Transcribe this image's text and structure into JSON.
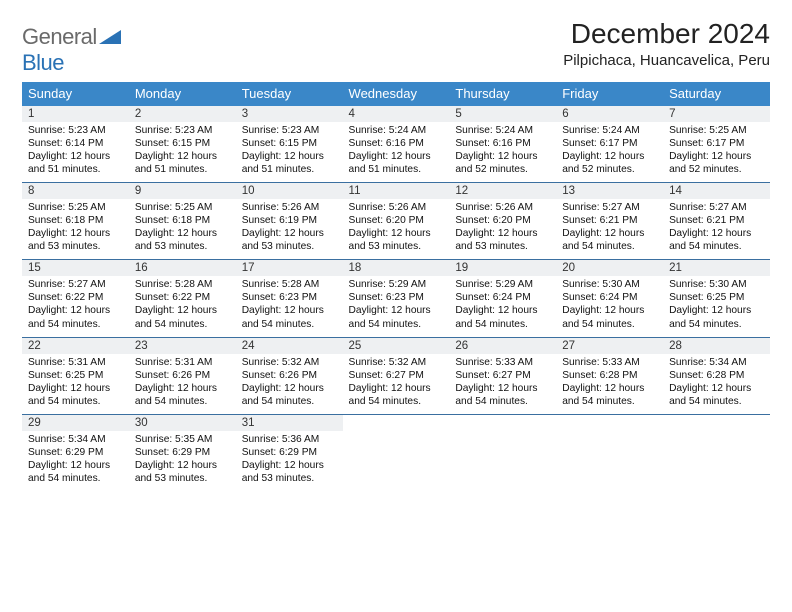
{
  "brand": {
    "part1": "General",
    "part2": "Blue"
  },
  "title": "December 2024",
  "location": "Pilpichaca, Huancavelica, Peru",
  "colors": {
    "header_bg": "#3a87c8",
    "header_text": "#ffffff",
    "daynum_bg": "#eef0f2",
    "row_divider": "#3a6fa0",
    "logo_gray": "#6a6a6a",
    "logo_blue": "#2a72b5",
    "page_bg": "#ffffff"
  },
  "typography": {
    "title_fontsize": 28,
    "location_fontsize": 15,
    "weekday_fontsize": 13,
    "daynum_fontsize": 11.5,
    "body_fontsize": 10.2
  },
  "weekdays": [
    "Sunday",
    "Monday",
    "Tuesday",
    "Wednesday",
    "Thursday",
    "Friday",
    "Saturday"
  ],
  "weeks": [
    [
      {
        "n": "1",
        "sr": "5:23 AM",
        "ss": "6:14 PM",
        "dl": "12 hours and 51 minutes."
      },
      {
        "n": "2",
        "sr": "5:23 AM",
        "ss": "6:15 PM",
        "dl": "12 hours and 51 minutes."
      },
      {
        "n": "3",
        "sr": "5:23 AM",
        "ss": "6:15 PM",
        "dl": "12 hours and 51 minutes."
      },
      {
        "n": "4",
        "sr": "5:24 AM",
        "ss": "6:16 PM",
        "dl": "12 hours and 51 minutes."
      },
      {
        "n": "5",
        "sr": "5:24 AM",
        "ss": "6:16 PM",
        "dl": "12 hours and 52 minutes."
      },
      {
        "n": "6",
        "sr": "5:24 AM",
        "ss": "6:17 PM",
        "dl": "12 hours and 52 minutes."
      },
      {
        "n": "7",
        "sr": "5:25 AM",
        "ss": "6:17 PM",
        "dl": "12 hours and 52 minutes."
      }
    ],
    [
      {
        "n": "8",
        "sr": "5:25 AM",
        "ss": "6:18 PM",
        "dl": "12 hours and 53 minutes."
      },
      {
        "n": "9",
        "sr": "5:25 AM",
        "ss": "6:18 PM",
        "dl": "12 hours and 53 minutes."
      },
      {
        "n": "10",
        "sr": "5:26 AM",
        "ss": "6:19 PM",
        "dl": "12 hours and 53 minutes."
      },
      {
        "n": "11",
        "sr": "5:26 AM",
        "ss": "6:20 PM",
        "dl": "12 hours and 53 minutes."
      },
      {
        "n": "12",
        "sr": "5:26 AM",
        "ss": "6:20 PM",
        "dl": "12 hours and 53 minutes."
      },
      {
        "n": "13",
        "sr": "5:27 AM",
        "ss": "6:21 PM",
        "dl": "12 hours and 54 minutes."
      },
      {
        "n": "14",
        "sr": "5:27 AM",
        "ss": "6:21 PM",
        "dl": "12 hours and 54 minutes."
      }
    ],
    [
      {
        "n": "15",
        "sr": "5:27 AM",
        "ss": "6:22 PM",
        "dl": "12 hours and 54 minutes."
      },
      {
        "n": "16",
        "sr": "5:28 AM",
        "ss": "6:22 PM",
        "dl": "12 hours and 54 minutes."
      },
      {
        "n": "17",
        "sr": "5:28 AM",
        "ss": "6:23 PM",
        "dl": "12 hours and 54 minutes."
      },
      {
        "n": "18",
        "sr": "5:29 AM",
        "ss": "6:23 PM",
        "dl": "12 hours and 54 minutes."
      },
      {
        "n": "19",
        "sr": "5:29 AM",
        "ss": "6:24 PM",
        "dl": "12 hours and 54 minutes."
      },
      {
        "n": "20",
        "sr": "5:30 AM",
        "ss": "6:24 PM",
        "dl": "12 hours and 54 minutes."
      },
      {
        "n": "21",
        "sr": "5:30 AM",
        "ss": "6:25 PM",
        "dl": "12 hours and 54 minutes."
      }
    ],
    [
      {
        "n": "22",
        "sr": "5:31 AM",
        "ss": "6:25 PM",
        "dl": "12 hours and 54 minutes."
      },
      {
        "n": "23",
        "sr": "5:31 AM",
        "ss": "6:26 PM",
        "dl": "12 hours and 54 minutes."
      },
      {
        "n": "24",
        "sr": "5:32 AM",
        "ss": "6:26 PM",
        "dl": "12 hours and 54 minutes."
      },
      {
        "n": "25",
        "sr": "5:32 AM",
        "ss": "6:27 PM",
        "dl": "12 hours and 54 minutes."
      },
      {
        "n": "26",
        "sr": "5:33 AM",
        "ss": "6:27 PM",
        "dl": "12 hours and 54 minutes."
      },
      {
        "n": "27",
        "sr": "5:33 AM",
        "ss": "6:28 PM",
        "dl": "12 hours and 54 minutes."
      },
      {
        "n": "28",
        "sr": "5:34 AM",
        "ss": "6:28 PM",
        "dl": "12 hours and 54 minutes."
      }
    ],
    [
      {
        "n": "29",
        "sr": "5:34 AM",
        "ss": "6:29 PM",
        "dl": "12 hours and 54 minutes."
      },
      {
        "n": "30",
        "sr": "5:35 AM",
        "ss": "6:29 PM",
        "dl": "12 hours and 53 minutes."
      },
      {
        "n": "31",
        "sr": "5:36 AM",
        "ss": "6:29 PM",
        "dl": "12 hours and 53 minutes."
      },
      null,
      null,
      null,
      null
    ]
  ],
  "labels": {
    "sunrise": "Sunrise:",
    "sunset": "Sunset:",
    "daylight": "Daylight:"
  }
}
